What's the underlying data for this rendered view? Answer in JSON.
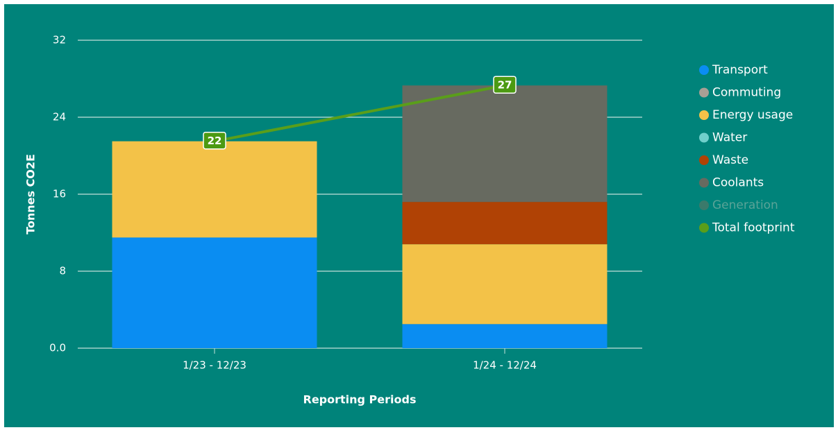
{
  "chart_data": {
    "type": "bar",
    "y_label": "Tonnes CO2E",
    "x_label": "Reporting Periods",
    "categories": [
      "1/23 - 12/23",
      "1/24 - 12/24"
    ],
    "stacked": true,
    "ylim": [
      0,
      32
    ],
    "yticks": [
      {
        "value": 0,
        "label": "0.0"
      },
      8,
      16,
      24,
      32
    ],
    "grid": true,
    "legend": "right",
    "series": [
      {
        "name": "Transport",
        "color": "#0a8df2",
        "values": [
          11.5,
          2.5
        ]
      },
      {
        "name": "Commuting",
        "color": "#a89f95",
        "values": [
          0,
          0
        ]
      },
      {
        "name": "Energy usage",
        "color": "#f3c248",
        "values": [
          10.0,
          8.3
        ]
      },
      {
        "name": "Water",
        "color": "#6fcfcb",
        "values": [
          0,
          0
        ]
      },
      {
        "name": "Waste",
        "color": "#b04205",
        "values": [
          0,
          4.4
        ]
      },
      {
        "name": "Coolants",
        "color": "#676a60",
        "values": [
          0,
          12.1
        ]
      },
      {
        "name": "Generation",
        "color": "#3b7a6b",
        "values": [
          0,
          0
        ],
        "hidden": true
      },
      {
        "name": "Total footprint",
        "color": "#5a9e1a",
        "type": "line",
        "values": [
          21.5,
          27.3
        ],
        "value_labels": [
          "22",
          "27"
        ]
      }
    ]
  }
}
